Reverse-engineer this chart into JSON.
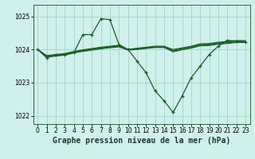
{
  "title": "Graphe pression niveau de la mer (hPa)",
  "bg_color": "#cff0eb",
  "grid_color": "#aad8ce",
  "line_color": "#1a5c28",
  "xlim": [
    -0.5,
    23.5
  ],
  "ylim": [
    1021.75,
    1025.35
  ],
  "yticks": [
    1022,
    1023,
    1024,
    1025
  ],
  "xticks": [
    0,
    1,
    2,
    3,
    4,
    5,
    6,
    7,
    8,
    9,
    10,
    11,
    12,
    13,
    14,
    15,
    16,
    17,
    18,
    19,
    20,
    21,
    22,
    23
  ],
  "series_volatile": [
    1024.0,
    1023.75,
    1023.83,
    1023.83,
    1023.9,
    1024.45,
    1024.45,
    1024.93,
    1024.9,
    1024.15,
    1024.0,
    1023.65,
    1023.3,
    1022.75,
    1022.45,
    1022.1,
    1022.6,
    1023.15,
    1023.5,
    1023.85,
    1024.1,
    1024.28,
    1024.25,
    1024.22
  ],
  "series_flat": [
    [
      1024.0,
      1023.82,
      1023.85,
      1023.88,
      1023.94,
      1023.99,
      1024.03,
      1024.07,
      1024.1,
      1024.13,
      1024.0,
      1024.04,
      1024.07,
      1024.1,
      1024.1,
      1024.0,
      1024.05,
      1024.1,
      1024.17,
      1024.18,
      1024.22,
      1024.24,
      1024.27,
      1024.27
    ],
    [
      1024.0,
      1023.8,
      1023.83,
      1023.86,
      1023.93,
      1023.97,
      1024.01,
      1024.05,
      1024.08,
      1024.11,
      1024.0,
      1024.02,
      1024.05,
      1024.08,
      1024.08,
      1023.97,
      1024.03,
      1024.08,
      1024.15,
      1024.16,
      1024.2,
      1024.22,
      1024.25,
      1024.25
    ],
    [
      1024.0,
      1023.79,
      1023.82,
      1023.85,
      1023.91,
      1023.96,
      1024.0,
      1024.04,
      1024.07,
      1024.1,
      1024.0,
      1024.01,
      1024.04,
      1024.07,
      1024.07,
      1023.95,
      1024.01,
      1024.06,
      1024.13,
      1024.14,
      1024.18,
      1024.2,
      1024.23,
      1024.23
    ],
    [
      1024.0,
      1023.77,
      1023.8,
      1023.83,
      1023.9,
      1023.94,
      1023.98,
      1024.02,
      1024.05,
      1024.08,
      1023.98,
      1024.0,
      1024.03,
      1024.06,
      1024.06,
      1023.93,
      1023.99,
      1024.04,
      1024.11,
      1024.12,
      1024.16,
      1024.18,
      1024.21,
      1024.21
    ]
  ],
  "title_fontsize": 7,
  "tick_fontsize": 5.5
}
